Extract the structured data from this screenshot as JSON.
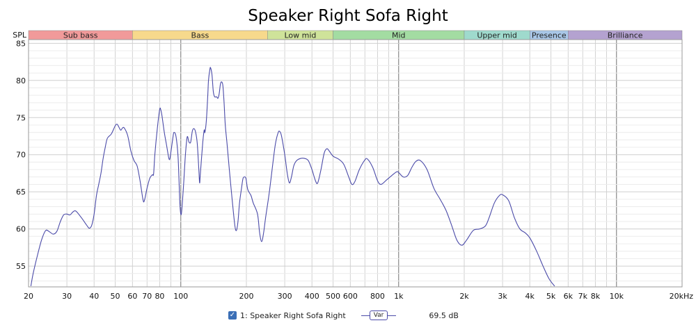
{
  "chart_data": {
    "type": "line",
    "title": "Speaker Right Sofa Right",
    "ylabel": "SPL",
    "xscale": "log",
    "xlim": [
      20,
      20000
    ],
    "ylim": [
      52.2,
      85.5
    ],
    "x_ticks": [
      20,
      30,
      40,
      50,
      60,
      70,
      80,
      100,
      200,
      300,
      400,
      500,
      600,
      800,
      1000,
      2000,
      3000,
      4000,
      5000,
      6000,
      7000,
      8000,
      10000,
      20000
    ],
    "x_tick_labels": [
      "20",
      "30",
      "40",
      "50",
      "60",
      "70",
      "80",
      "100",
      "200",
      "300",
      "400",
      "500",
      "600",
      "800",
      "1k",
      "2k",
      "3k",
      "4k",
      "5k",
      "6k",
      "7k",
      "8k",
      "10k",
      "20kHz"
    ],
    "y_ticks": [
      55,
      60,
      65,
      70,
      75,
      80,
      85
    ],
    "grid": true,
    "bands": [
      {
        "label": "Sub bass",
        "from": 20,
        "to": 60,
        "color": "#f19a9a"
      },
      {
        "label": "Bass",
        "from": 60,
        "to": 250,
        "color": "#f7d98c"
      },
      {
        "label": "Low mid",
        "from": 250,
        "to": 500,
        "color": "#cfe39a"
      },
      {
        "label": "Mid",
        "from": 500,
        "to": 2000,
        "color": "#a3dca2"
      },
      {
        "label": "Upper mid",
        "from": 2000,
        "to": 4000,
        "color": "#9fdacd"
      },
      {
        "label": "Presence",
        "from": 4000,
        "to": 6000,
        "color": "#a9c7e8"
      },
      {
        "label": "Brilliance",
        "from": 6000,
        "to": 20000,
        "color": "#b4a2d0"
      }
    ],
    "series": [
      {
        "name": "1: Speaker Right Sofa Right",
        "color": "#4a4aa8",
        "points": [
          [
            20.5,
            52.3
          ],
          [
            21,
            54
          ],
          [
            22,
            56.5
          ],
          [
            23,
            58.6
          ],
          [
            24,
            59.8
          ],
          [
            25,
            59.6
          ],
          [
            26,
            59.3
          ],
          [
            27,
            59.7
          ],
          [
            28,
            61
          ],
          [
            29,
            61.9
          ],
          [
            30,
            62
          ],
          [
            31,
            61.9
          ],
          [
            32,
            62.3
          ],
          [
            33,
            62.4
          ],
          [
            35,
            61.5
          ],
          [
            37,
            60.5
          ],
          [
            38,
            60.1
          ],
          [
            39,
            60.5
          ],
          [
            40,
            62
          ],
          [
            41,
            64.5
          ],
          [
            42,
            66
          ],
          [
            43,
            67.5
          ],
          [
            44,
            69.5
          ],
          [
            45,
            71
          ],
          [
            46,
            72.2
          ],
          [
            48,
            72.8
          ],
          [
            50,
            73.9
          ],
          [
            51,
            74.1
          ],
          [
            52,
            73.7
          ],
          [
            53,
            73.3
          ],
          [
            54,
            73.6
          ],
          [
            55,
            73.6
          ],
          [
            57,
            72.6
          ],
          [
            59,
            70.5
          ],
          [
            61,
            69.2
          ],
          [
            63,
            68.5
          ],
          [
            65,
            66.5
          ],
          [
            67,
            64
          ],
          [
            68,
            63.8
          ],
          [
            70,
            65.5
          ],
          [
            72,
            66.8
          ],
          [
            74,
            67.3
          ],
          [
            75,
            67.4
          ],
          [
            76,
            70
          ],
          [
            78,
            73.5
          ],
          [
            80,
            76.1
          ],
          [
            81,
            76
          ],
          [
            82,
            75.2
          ],
          [
            84,
            73
          ],
          [
            86,
            71.3
          ],
          [
            88,
            69.6
          ],
          [
            89,
            69.4
          ],
          [
            90,
            70.3
          ],
          [
            92,
            72.3
          ],
          [
            93,
            73
          ],
          [
            95,
            72.5
          ],
          [
            97,
            70
          ],
          [
            98,
            67
          ],
          [
            99,
            63.5
          ],
          [
            100,
            62
          ],
          [
            101,
            62.5
          ],
          [
            103,
            66
          ],
          [
            105,
            70
          ],
          [
            107,
            72.4
          ],
          [
            109,
            71.7
          ],
          [
            111,
            71.7
          ],
          [
            113,
            73.2
          ],
          [
            115,
            73.5
          ],
          [
            117,
            73
          ],
          [
            119,
            71.5
          ],
          [
            121,
            68
          ],
          [
            122,
            66.2
          ],
          [
            123,
            67.5
          ],
          [
            126,
            71.5
          ],
          [
            128,
            73.3
          ],
          [
            129,
            73
          ],
          [
            131,
            74.6
          ],
          [
            133,
            78
          ],
          [
            134,
            80
          ],
          [
            136,
            81.5
          ],
          [
            137,
            81.7
          ],
          [
            139,
            80.8
          ],
          [
            141,
            78.5
          ],
          [
            143,
            77.8
          ],
          [
            146,
            77.8
          ],
          [
            148,
            77.6
          ],
          [
            150,
            78.2
          ],
          [
            152,
            79.5
          ],
          [
            154,
            79.8
          ],
          [
            156,
            79.3
          ],
          [
            158,
            77
          ],
          [
            160,
            74
          ],
          [
            163,
            71.5
          ],
          [
            167,
            68
          ],
          [
            172,
            64
          ],
          [
            177,
            60.5
          ],
          [
            180,
            59.8
          ],
          [
            183,
            61
          ],
          [
            186,
            63.5
          ],
          [
            190,
            65.5
          ],
          [
            193,
            66.8
          ],
          [
            196,
            67
          ],
          [
            199,
            66.8
          ],
          [
            203,
            65.3
          ],
          [
            210,
            64.5
          ],
          [
            215,
            63.5
          ],
          [
            225,
            62
          ],
          [
            230,
            59.5
          ],
          [
            235,
            58.3
          ],
          [
            240,
            59.5
          ],
          [
            245,
            61.5
          ],
          [
            255,
            65
          ],
          [
            265,
            69
          ],
          [
            272,
            71.5
          ],
          [
            280,
            73
          ],
          [
            285,
            73.1
          ],
          [
            290,
            72.5
          ],
          [
            300,
            70
          ],
          [
            308,
            67.5
          ],
          [
            315,
            66.2
          ],
          [
            322,
            67
          ],
          [
            330,
            68.5
          ],
          [
            340,
            69.2
          ],
          [
            355,
            69.5
          ],
          [
            370,
            69.5
          ],
          [
            385,
            69.2
          ],
          [
            400,
            68
          ],
          [
            415,
            66.5
          ],
          [
            425,
            66.2
          ],
          [
            440,
            68
          ],
          [
            455,
            70.2
          ],
          [
            468,
            70.8
          ],
          [
            480,
            70.5
          ],
          [
            500,
            69.8
          ],
          [
            530,
            69.4
          ],
          [
            560,
            68.7
          ],
          [
            590,
            67
          ],
          [
            610,
            66
          ],
          [
            630,
            66.4
          ],
          [
            660,
            68
          ],
          [
            700,
            69.3
          ],
          [
            720,
            69.4
          ],
          [
            760,
            68.3
          ],
          [
            800,
            66.5
          ],
          [
            830,
            66
          ],
          [
            880,
            66.6
          ],
          [
            930,
            67.2
          ],
          [
            980,
            67.7
          ],
          [
            1000,
            67.6
          ],
          [
            1050,
            67
          ],
          [
            1100,
            67.2
          ],
          [
            1150,
            68.3
          ],
          [
            1200,
            69.1
          ],
          [
            1260,
            69.2
          ],
          [
            1350,
            68
          ],
          [
            1450,
            65.5
          ],
          [
            1550,
            64
          ],
          [
            1650,
            62.5
          ],
          [
            1750,
            60.5
          ],
          [
            1850,
            58.5
          ],
          [
            1950,
            57.8
          ],
          [
            2050,
            58.5
          ],
          [
            2200,
            59.8
          ],
          [
            2350,
            60
          ],
          [
            2500,
            60.4
          ],
          [
            2600,
            61.5
          ],
          [
            2750,
            63.5
          ],
          [
            2900,
            64.5
          ],
          [
            3000,
            64.6
          ],
          [
            3200,
            63.8
          ],
          [
            3400,
            61.5
          ],
          [
            3600,
            60
          ],
          [
            3800,
            59.5
          ],
          [
            4000,
            58.8
          ],
          [
            4300,
            57
          ],
          [
            4600,
            55
          ],
          [
            4900,
            53.3
          ],
          [
            5200,
            52.3
          ]
        ]
      }
    ],
    "legend": {
      "entry": "1: Speaker Right Sofa Right",
      "tag": "Var",
      "value": "69.5 dB"
    }
  }
}
